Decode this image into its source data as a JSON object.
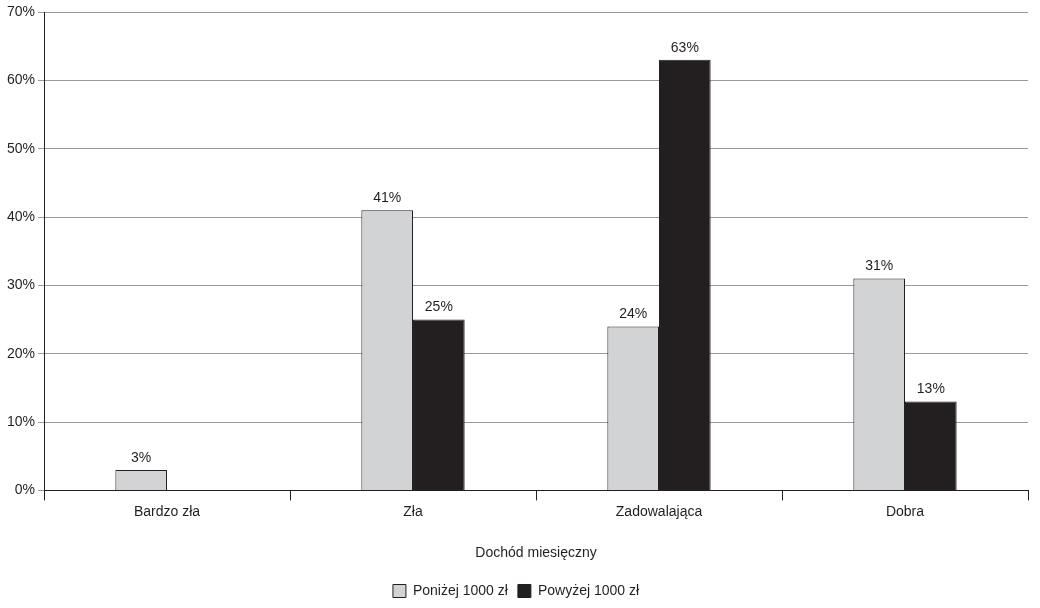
{
  "chart_data": {
    "type": "bar",
    "xlabel": "Dochód miesięczny",
    "categories": [
      "Bardzo zła",
      "Zła",
      "Zadowalająca",
      "Dobra"
    ],
    "series": [
      {
        "name": "Poniżej 1000 zł",
        "color": "#d1d3d4",
        "values": [
          3,
          41,
          24,
          31
        ],
        "value_labels": [
          "3%",
          "41%",
          "24%",
          "31%"
        ]
      },
      {
        "name": "Powyżej 1000 zł",
        "color": "#231f20",
        "values": [
          null,
          25,
          63,
          13
        ],
        "value_labels": [
          null,
          "25%",
          "63%",
          "13%"
        ]
      }
    ],
    "ylim": [
      0,
      70
    ],
    "yticks": [
      {
        "value": 0,
        "label": "0%"
      },
      {
        "value": 10,
        "label": "10%"
      },
      {
        "value": 20,
        "label": "20%"
      },
      {
        "value": 30,
        "label": "30%"
      },
      {
        "value": 40,
        "label": "40%"
      },
      {
        "value": 50,
        "label": "50%"
      },
      {
        "value": 60,
        "label": "60%"
      },
      {
        "value": 70,
        "label": "70%"
      }
    ],
    "grid": "y",
    "legend": "bottom"
  }
}
